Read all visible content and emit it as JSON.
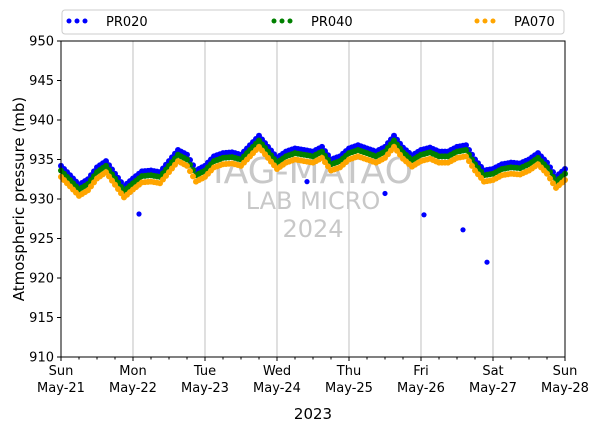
{
  "chart_data": {
    "type": "scatter",
    "xlabel": "2023",
    "ylabel": "Atmospheric pressure (mb)",
    "ylim": [
      910,
      950
    ],
    "yticks": [
      910,
      915,
      920,
      925,
      930,
      935,
      940,
      945,
      950
    ],
    "xlim": [
      "2023-05-21 00:00",
      "2023-05-28 00:00"
    ],
    "x_ticks": [
      {
        "day": "Sun",
        "date": "May-21"
      },
      {
        "day": "Mon",
        "date": "May-22"
      },
      {
        "day": "Tue",
        "date": "May-23"
      },
      {
        "day": "Wed",
        "date": "May-24"
      },
      {
        "day": "Thu",
        "date": "May-25"
      },
      {
        "day": "Fri",
        "date": "May-26"
      },
      {
        "day": "Sat",
        "date": "May-27"
      },
      {
        "day": "Sun",
        "date": "May-28"
      }
    ],
    "grid": "vertical at major ticks",
    "legend_position": "top, above plot",
    "watermark": [
      "IAG-MATAO",
      "LAB MICRO",
      "2024"
    ],
    "series": [
      {
        "name": "PR020",
        "color": "#0000ff",
        "x": [
          "2023-05-21 00:00",
          "2023-05-21 03:00",
          "2023-05-21 06:00",
          "2023-05-21 09:00",
          "2023-05-21 12:00",
          "2023-05-21 15:00",
          "2023-05-21 18:00",
          "2023-05-21 21:00",
          "2023-05-22 00:00",
          "2023-05-22 03:00",
          "2023-05-22 06:00",
          "2023-05-22 09:00",
          "2023-05-22 12:00",
          "2023-05-22 15:00",
          "2023-05-22 18:00",
          "2023-05-22 21:00",
          "2023-05-23 00:00",
          "2023-05-23 03:00",
          "2023-05-23 06:00",
          "2023-05-23 09:00",
          "2023-05-23 12:00",
          "2023-05-23 15:00",
          "2023-05-23 18:00",
          "2023-05-23 21:00",
          "2023-05-24 00:00",
          "2023-05-24 03:00",
          "2023-05-24 06:00",
          "2023-05-24 09:00",
          "2023-05-24 12:00",
          "2023-05-24 15:00",
          "2023-05-24 18:00",
          "2023-05-24 21:00",
          "2023-05-25 00:00",
          "2023-05-25 03:00",
          "2023-05-25 06:00",
          "2023-05-25 09:00",
          "2023-05-25 12:00",
          "2023-05-25 15:00",
          "2023-05-25 18:00",
          "2023-05-25 21:00",
          "2023-05-26 00:00",
          "2023-05-26 03:00",
          "2023-05-26 06:00",
          "2023-05-26 09:00",
          "2023-05-26 12:00",
          "2023-05-26 15:00",
          "2023-05-26 18:00",
          "2023-05-26 21:00",
          "2023-05-27 00:00",
          "2023-05-27 03:00",
          "2023-05-27 06:00",
          "2023-05-27 09:00",
          "2023-05-27 12:00",
          "2023-05-27 15:00",
          "2023-05-27 18:00",
          "2023-05-27 21:00",
          "2023-05-28 00:00"
        ],
        "y": [
          934.2,
          933.0,
          931.8,
          932.5,
          934.0,
          934.8,
          933.2,
          931.6,
          932.6,
          933.5,
          933.6,
          933.4,
          934.8,
          936.2,
          935.6,
          933.6,
          934.2,
          935.4,
          935.8,
          935.9,
          935.6,
          936.8,
          938.0,
          936.6,
          935.2,
          936.0,
          936.4,
          936.2,
          936.0,
          936.6,
          935.0,
          935.4,
          936.4,
          936.8,
          936.4,
          936.0,
          936.6,
          938.0,
          936.5,
          935.5,
          936.2,
          936.5,
          936.0,
          936.0,
          936.6,
          936.8,
          935.0,
          933.6,
          933.8,
          934.4,
          934.6,
          934.5,
          935.0,
          935.8,
          934.6,
          932.8,
          933.8
        ],
        "outliers": [
          {
            "x": "2023-05-22 02:00",
            "y": 928.1
          },
          {
            "x": "2023-05-24 10:00",
            "y": 932.2
          },
          {
            "x": "2023-05-25 12:00",
            "y": 930.7
          },
          {
            "x": "2023-05-26 01:00",
            "y": 928.0
          },
          {
            "x": "2023-05-26 14:00",
            "y": 926.1
          },
          {
            "x": "2023-05-26 22:00",
            "y": 922.0
          }
        ]
      },
      {
        "name": "PR040",
        "color": "#008000",
        "x": [
          "2023-05-21 00:00",
          "2023-05-21 03:00",
          "2023-05-21 06:00",
          "2023-05-21 09:00",
          "2023-05-21 12:00",
          "2023-05-21 15:00",
          "2023-05-21 18:00",
          "2023-05-21 21:00",
          "2023-05-22 00:00",
          "2023-05-22 03:00",
          "2023-05-22 06:00",
          "2023-05-22 09:00",
          "2023-05-22 12:00",
          "2023-05-22 15:00",
          "2023-05-22 18:00",
          "2023-05-22 21:00",
          "2023-05-23 00:00",
          "2023-05-23 03:00",
          "2023-05-23 06:00",
          "2023-05-23 09:00",
          "2023-05-23 12:00",
          "2023-05-23 15:00",
          "2023-05-23 18:00",
          "2023-05-23 21:00",
          "2023-05-24 00:00",
          "2023-05-24 03:00",
          "2023-05-24 06:00",
          "2023-05-24 09:00",
          "2023-05-24 12:00",
          "2023-05-24 15:00",
          "2023-05-24 18:00",
          "2023-05-24 21:00",
          "2023-05-25 00:00",
          "2023-05-25 03:00",
          "2023-05-25 06:00",
          "2023-05-25 09:00",
          "2023-05-25 12:00",
          "2023-05-25 15:00",
          "2023-05-25 18:00",
          "2023-05-25 21:00",
          "2023-05-26 00:00",
          "2023-05-26 03:00",
          "2023-05-26 06:00",
          "2023-05-26 09:00",
          "2023-05-26 12:00",
          "2023-05-26 15:00",
          "2023-05-26 18:00",
          "2023-05-26 21:00",
          "2023-05-27 00:00",
          "2023-05-27 03:00",
          "2023-05-27 06:00",
          "2023-05-27 09:00",
          "2023-05-27 12:00",
          "2023-05-27 15:00",
          "2023-05-27 18:00",
          "2023-05-27 21:00",
          "2023-05-28 00:00"
        ],
        "y": [
          933.6,
          932.4,
          931.2,
          931.9,
          933.4,
          934.2,
          932.6,
          931.0,
          932.0,
          932.9,
          933.0,
          932.8,
          934.2,
          935.6,
          935.0,
          933.0,
          933.6,
          934.8,
          935.2,
          935.3,
          935.0,
          936.2,
          937.4,
          936.0,
          934.6,
          935.4,
          935.8,
          935.6,
          935.4,
          936.0,
          934.4,
          934.8,
          935.8,
          936.2,
          935.8,
          935.4,
          936.0,
          937.4,
          935.9,
          934.9,
          935.6,
          935.9,
          935.4,
          935.4,
          936.0,
          936.2,
          934.4,
          933.0,
          933.2,
          933.8,
          934.0,
          933.9,
          934.4,
          935.2,
          934.0,
          932.2,
          933.2
        ]
      },
      {
        "name": "PA070",
        "color": "#ffa500",
        "x": [
          "2023-05-21 00:00",
          "2023-05-21 03:00",
          "2023-05-21 06:00",
          "2023-05-21 09:00",
          "2023-05-21 12:00",
          "2023-05-21 15:00",
          "2023-05-21 18:00",
          "2023-05-21 21:00",
          "2023-05-22 00:00",
          "2023-05-22 03:00",
          "2023-05-22 06:00",
          "2023-05-22 09:00",
          "2023-05-22 12:00",
          "2023-05-22 15:00",
          "2023-05-22 18:00",
          "2023-05-22 21:00",
          "2023-05-23 00:00",
          "2023-05-23 03:00",
          "2023-05-23 06:00",
          "2023-05-23 09:00",
          "2023-05-23 12:00",
          "2023-05-23 15:00",
          "2023-05-23 18:00",
          "2023-05-23 21:00",
          "2023-05-24 00:00",
          "2023-05-24 03:00",
          "2023-05-24 06:00",
          "2023-05-24 09:00",
          "2023-05-24 12:00",
          "2023-05-24 15:00",
          "2023-05-24 18:00",
          "2023-05-24 21:00",
          "2023-05-25 00:00",
          "2023-05-25 03:00",
          "2023-05-25 06:00",
          "2023-05-25 09:00",
          "2023-05-25 12:00",
          "2023-05-25 15:00",
          "2023-05-25 18:00",
          "2023-05-25 21:00",
          "2023-05-26 00:00",
          "2023-05-26 03:00",
          "2023-05-26 06:00",
          "2023-05-26 09:00",
          "2023-05-26 12:00",
          "2023-05-26 15:00",
          "2023-05-26 18:00",
          "2023-05-26 21:00",
          "2023-05-27 00:00",
          "2023-05-27 03:00",
          "2023-05-27 06:00",
          "2023-05-27 09:00",
          "2023-05-27 12:00",
          "2023-05-27 15:00",
          "2023-05-27 18:00",
          "2023-05-27 21:00",
          "2023-05-28 00:00"
        ],
        "y": [
          932.8,
          931.6,
          930.4,
          931.1,
          932.6,
          933.4,
          931.8,
          930.2,
          931.2,
          932.1,
          932.2,
          932.0,
          933.4,
          934.8,
          934.2,
          932.2,
          932.8,
          934.0,
          934.4,
          934.5,
          934.2,
          935.4,
          936.6,
          935.2,
          933.8,
          934.6,
          935.0,
          934.8,
          934.6,
          935.2,
          933.6,
          934.0,
          935.0,
          935.4,
          935.0,
          934.6,
          935.2,
          936.6,
          935.1,
          934.1,
          934.8,
          935.1,
          934.6,
          934.6,
          935.2,
          935.4,
          933.6,
          932.2,
          932.4,
          933.0,
          933.2,
          933.1,
          933.6,
          934.4,
          933.2,
          931.4,
          932.4
        ]
      }
    ]
  }
}
